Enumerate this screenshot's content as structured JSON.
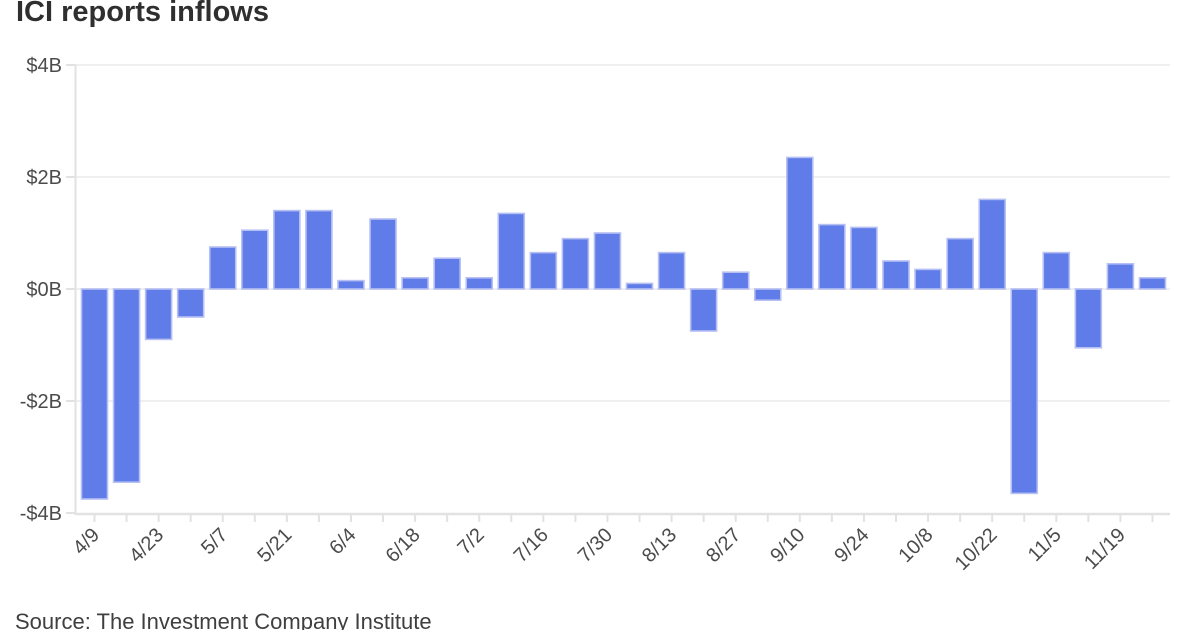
{
  "title": "ICI reports inflows",
  "source": "Source: The Investment Company Institute",
  "colors": {
    "bar_fill": "#5f7ce8",
    "bar_stroke": "#b6c0f3",
    "grid": "#efefef",
    "axis": "#e2e2e2",
    "title_text": "#2f2f2f",
    "axis_text": "#4b4b4b",
    "source_text": "#3f3f3f",
    "background": "#ffffff"
  },
  "chart_data": {
    "type": "bar",
    "title": "ICI reports inflows",
    "xlabel": "",
    "ylabel": "",
    "unit": "billions of dollars",
    "ylim": [
      -4,
      4
    ],
    "grid": true,
    "legend": false,
    "y_ticks": [
      {
        "label": "$4B",
        "value": 4
      },
      {
        "label": "$2B",
        "value": 2
      },
      {
        "label": "$0B",
        "value": 0
      },
      {
        "label": "-$2B",
        "value": -2
      },
      {
        "label": "-$4B",
        "value": -4
      }
    ],
    "x_tick_labels": [
      "4/9",
      "4/23",
      "5/7",
      "5/21",
      "6/4",
      "6/18",
      "7/2",
      "7/16",
      "7/30",
      "8/13",
      "8/27",
      "9/10",
      "9/24",
      "10/8",
      "10/22",
      "11/5",
      "11/19"
    ],
    "x_label_every_other_bar": true,
    "x_labels_rotated_degrees": -45,
    "values": [
      -3.75,
      -3.45,
      -0.9,
      -0.5,
      0.75,
      1.05,
      1.4,
      1.4,
      0.15,
      1.25,
      0.2,
      0.55,
      0.2,
      1.35,
      0.65,
      0.9,
      1.0,
      0.1,
      0.65,
      -0.75,
      0.3,
      -0.2,
      2.35,
      1.15,
      1.1,
      0.5,
      0.35,
      0.9,
      1.6,
      -3.65,
      0.65,
      -1.05,
      0.45,
      0.2
    ]
  }
}
